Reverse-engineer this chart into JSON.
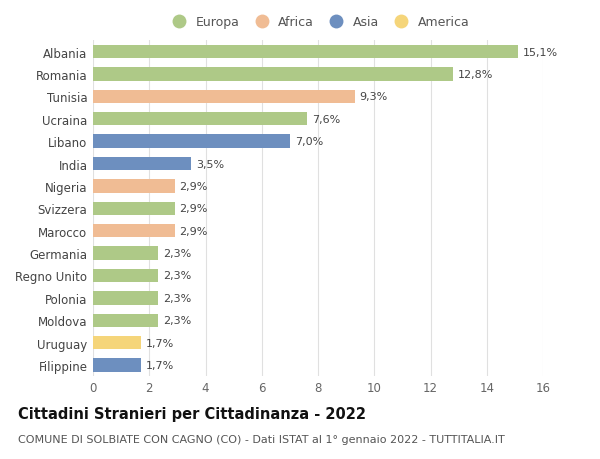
{
  "categories": [
    "Albania",
    "Romania",
    "Tunisia",
    "Ucraina",
    "Libano",
    "India",
    "Nigeria",
    "Svizzera",
    "Marocco",
    "Germania",
    "Regno Unito",
    "Polonia",
    "Moldova",
    "Uruguay",
    "Filippine"
  ],
  "values": [
    15.1,
    12.8,
    9.3,
    7.6,
    7.0,
    3.5,
    2.9,
    2.9,
    2.9,
    2.3,
    2.3,
    2.3,
    2.3,
    1.7,
    1.7
  ],
  "labels": [
    "15,1%",
    "12,8%",
    "9,3%",
    "7,6%",
    "7,0%",
    "3,5%",
    "2,9%",
    "2,9%",
    "2,9%",
    "2,3%",
    "2,3%",
    "2,3%",
    "2,3%",
    "1,7%",
    "1,7%"
  ],
  "continents": [
    "Europa",
    "Europa",
    "Africa",
    "Europa",
    "Asia",
    "Asia",
    "Africa",
    "Europa",
    "Africa",
    "Europa",
    "Europa",
    "Europa",
    "Europa",
    "America",
    "Asia"
  ],
  "colors": {
    "Europa": "#aec987",
    "Africa": "#f0bc94",
    "Asia": "#6d8fbf",
    "America": "#f5d57a"
  },
  "legend_order": [
    "Europa",
    "Africa",
    "Asia",
    "America"
  ],
  "title": "Cittadini Stranieri per Cittadinanza - 2022",
  "subtitle": "COMUNE DI SOLBIATE CON CAGNO (CO) - Dati ISTAT al 1° gennaio 2022 - TUTTITALIA.IT",
  "xlim": [
    0,
    16
  ],
  "xticks": [
    0,
    2,
    4,
    6,
    8,
    10,
    12,
    14,
    16
  ],
  "background_color": "#ffffff",
  "grid_color": "#e0e0e0",
  "bar_height": 0.6,
  "title_fontsize": 10.5,
  "subtitle_fontsize": 8,
  "label_fontsize": 8,
  "tick_fontsize": 8.5,
  "legend_fontsize": 9
}
